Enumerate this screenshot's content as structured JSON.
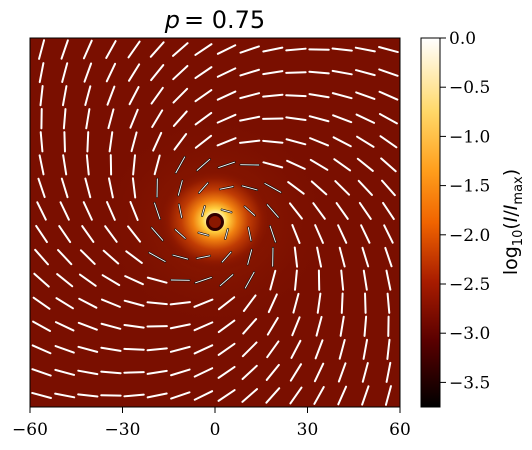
{
  "chart_data": {
    "type": "heatmap",
    "title": "p = 0.75",
    "title_var": "p",
    "title_value": "= 0.75",
    "xlim": [
      -60,
      60
    ],
    "ylim": [
      -60,
      60
    ],
    "x_ticks": [
      -60,
      -30,
      0,
      30,
      60
    ],
    "x_tick_labels": [
      "−60",
      "−30",
      "0",
      "30",
      "60"
    ],
    "colorbar": {
      "label_prefix": "log",
      "label_sub": "10",
      "label_paren_open": "(",
      "label_I": "I",
      "label_slash": "/",
      "label_max_I": "I",
      "label_max_sub": "max",
      "label_paren_close": ")",
      "min": -3.75,
      "max": 0.0,
      "ticks": [
        0.0,
        -0.5,
        -1.0,
        -1.5,
        -2.0,
        -2.5,
        -3.0,
        -3.5
      ],
      "tick_labels": [
        "0.0",
        "−0.5",
        "−1.0",
        "−1.5",
        "−2.0",
        "−2.5",
        "−3.0",
        "−3.5"
      ],
      "colormap": "afmhot"
    },
    "field": {
      "description": "log intensity image with polarization tick overlay",
      "center": [
        0,
        0
      ],
      "spiral_pitch_deg": 30,
      "grid_step": 7.5
    }
  },
  "colors": {
    "background": "#7a0f00",
    "tick": "#ffffff",
    "axis": "#000000"
  }
}
